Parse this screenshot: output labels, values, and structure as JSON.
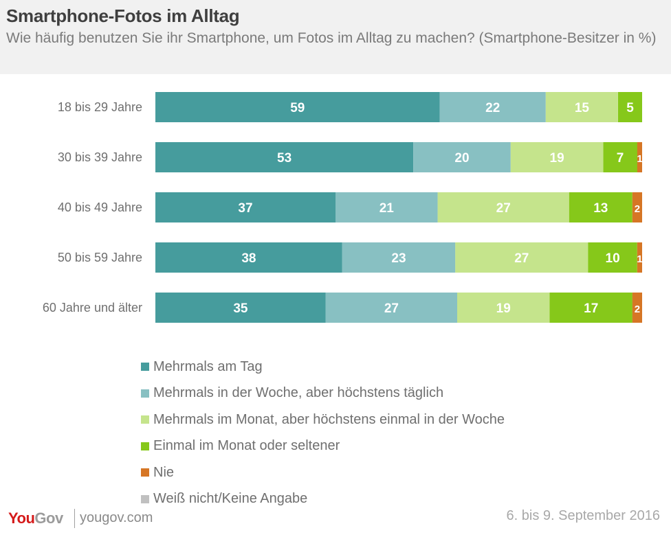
{
  "header": {
    "title": "Smartphone-Fotos im Alltag",
    "subtitle": "Wie häufig benutzen Sie ihr Smartphone, um Fotos im Alltag zu machen? (Smartphone-Besitzer in %)"
  },
  "chart_data": {
    "type": "bar",
    "orientation": "horizontal",
    "stacked": true,
    "title": "Smartphone-Fotos im Alltag",
    "subtitle": "Wie häufig benutzen Sie ihr Smartphone, um Fotos im Alltag zu machen? (Smartphone-Besitzer in %)",
    "xlabel": "",
    "ylabel": "",
    "xlim": [
      0,
      100
    ],
    "grid": false,
    "legend_position": "bottom",
    "categories": [
      "18 bis 29 Jahre",
      "30 bis 39 Jahre",
      "40 bis 49 Jahre",
      "50 bis 59 Jahre",
      "60 Jahre und älter"
    ],
    "series": [
      {
        "name": "Mehrmals am Tag",
        "color": "#469c9d",
        "values": [
          59,
          53,
          37,
          38,
          35
        ]
      },
      {
        "name": "Mehrmals in der Woche, aber höchstens täglich",
        "color": "#88c0c2",
        "values": [
          22,
          20,
          21,
          23,
          27
        ]
      },
      {
        "name": "Mehrmals im Monat, aber höchstens einmal in der Woche",
        "color": "#c5e48c",
        "values": [
          15,
          19,
          27,
          27,
          19
        ]
      },
      {
        "name": "Einmal im Monat oder seltener",
        "color": "#86c81a",
        "values": [
          5,
          7,
          13,
          10,
          17
        ]
      },
      {
        "name": "Nie",
        "color": "#d67625",
        "values": [
          0,
          1,
          2,
          1,
          2
        ]
      },
      {
        "name": "Weiß nicht/Keine Angabe",
        "color": "#c0c0c0",
        "values": [
          0,
          0,
          0,
          0,
          0
        ]
      }
    ]
  },
  "footer": {
    "logo_you": "You",
    "logo_gov": "Gov",
    "url": "yougov.com",
    "date": "6. bis 9. September 2016"
  }
}
